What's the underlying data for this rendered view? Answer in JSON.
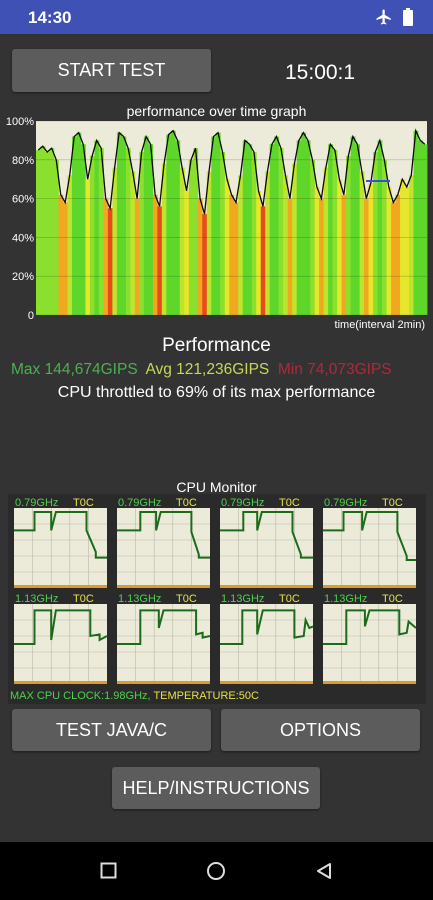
{
  "status_bar": {
    "time": "14:30",
    "icons": [
      "airplane-icon",
      "battery-icon"
    ]
  },
  "controls": {
    "start_test_label": "START TEST",
    "timer": "15:00:1",
    "test_java_label": "TEST JAVA/C",
    "options_label": "OPTIONS",
    "help_label": "HELP/INSTRUCTIONS"
  },
  "graph": {
    "title": "performance over time graph",
    "y_ticks": [
      "100%",
      "80%",
      "60%",
      "40%",
      "20%",
      "0"
    ],
    "x_label": "time(interval 2min)"
  },
  "chart_data": {
    "type": "area",
    "title": "performance over time graph",
    "xlabel": "time(interval 2min)",
    "ylabel": "",
    "ylim": [
      0,
      100
    ],
    "y": [
      85,
      87,
      84,
      86,
      80,
      62,
      58,
      72,
      92,
      94,
      88,
      70,
      82,
      90,
      86,
      60,
      55,
      76,
      94,
      92,
      86,
      74,
      60,
      84,
      92,
      88,
      62,
      56,
      78,
      93,
      95,
      90,
      76,
      64,
      80,
      86,
      60,
      52,
      74,
      92,
      94,
      84,
      70,
      62,
      58,
      72,
      90,
      88,
      84,
      64,
      56,
      74,
      88,
      92,
      86,
      72,
      60,
      78,
      90,
      94,
      90,
      80,
      66,
      60,
      76,
      88,
      85,
      70,
      62,
      82,
      92,
      88,
      74,
      60,
      68,
      84,
      90,
      80,
      66,
      58,
      62,
      70,
      66,
      72,
      95,
      90,
      88
    ]
  },
  "performance": {
    "title": "Performance",
    "max": "Max 144,674GIPS",
    "avg": "Avg 121,236GIPS",
    "min": "Min 74,073GIPS",
    "throttle": "CPU throttled to 69% of its max performance"
  },
  "cpu_monitor": {
    "title": "CPU Monitor",
    "cores": [
      {
        "freq": "0.79GHz",
        "temp": "T0C"
      },
      {
        "freq": "0.79GHz",
        "temp": "T0C"
      },
      {
        "freq": "0.79GHz",
        "temp": "T0C"
      },
      {
        "freq": "0.79GHz",
        "temp": "T0C"
      },
      {
        "freq": "1.13GHz",
        "temp": "T0C"
      },
      {
        "freq": "1.13GHz",
        "temp": "T0C"
      },
      {
        "freq": "1.13GHz",
        "temp": "T0C"
      },
      {
        "freq": "1.13GHz",
        "temp": "T0C"
      }
    ],
    "max_clock": "MAX CPU CLOCK:1.98GHz,",
    "temperature": " TEMPERATURE:50C"
  },
  "colors": {
    "graph_bg": "#ecebd9",
    "trace": "#1b6b1b",
    "max_text": "#4caf50",
    "avg_text": "#c8d65a",
    "min_text": "#b0283c",
    "temp_label": "#e8e04a",
    "clock_label": "#4cd24c",
    "status_bar": "#3f51b5"
  }
}
